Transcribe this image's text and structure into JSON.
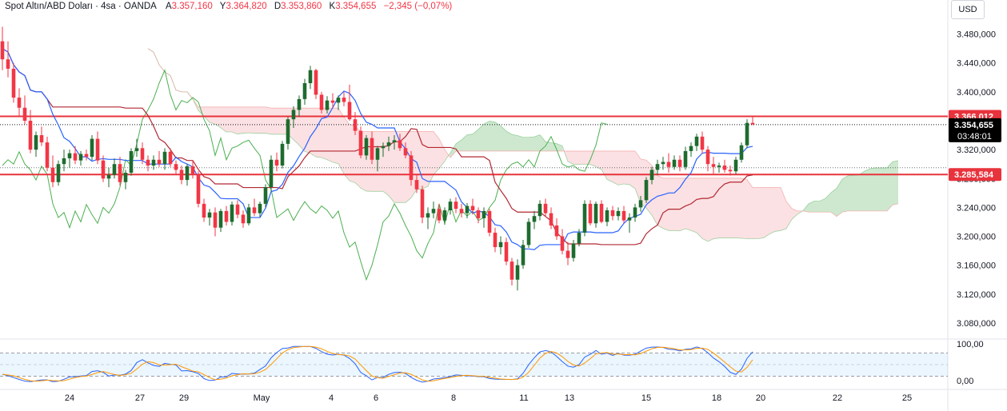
{
  "header": {
    "symbol": "Spot Altın/ABD Doları · 4sa · OANDA",
    "open_label": "A",
    "open": "3.357,160",
    "high_label": "Y",
    "high": "3.364,820",
    "low_label": "D",
    "low": "3.353,860",
    "close_label": "K",
    "close": "3.354,655",
    "change": "−2,345 (−0,07%)"
  },
  "currency": "USD",
  "colors": {
    "up": "#1e6b2e",
    "down": "#f23645",
    "level": "#e8333c",
    "kijun": "#b22833",
    "tenkan": "#2962ff",
    "lagging": "#4caf50",
    "cloud_up": "#a5d6a7",
    "cloud_down": "#f8c9cc",
    "stoch_k": "#2962ff",
    "stoch_d": "#ff9800"
  },
  "chart_data": [
    {
      "type": "candlestick",
      "y_axis_ticks": [
        3080,
        3120,
        3160,
        3200,
        3240,
        3280,
        3320,
        3360,
        3400,
        3440,
        3480
      ],
      "y_tick_labels": [
        "3.080,000",
        "3.120,000",
        "3.160,000",
        "3.200,000",
        "3.240,000",
        "3.280,000",
        "3.320,000",
        "3.360,000",
        "3.400,000",
        "3.440,000",
        "3.480,000"
      ],
      "ylim": [
        3060,
        3505
      ],
      "x_labels": [
        "24",
        "27",
        "29",
        "May",
        "4",
        "6",
        "8",
        "11",
        "13",
        "15",
        "18",
        "20",
        "22",
        "25"
      ],
      "levels": [
        {
          "label": "3.366,012",
          "value": 3366.012
        },
        {
          "label": "3.285,584",
          "value": 3285.584
        }
      ],
      "current_price": {
        "label": "3.354,655",
        "value": 3354.655,
        "countdown": "03:48:01"
      },
      "candles_ohlc": [
        [
          3470,
          3490,
          3430,
          3445
        ],
        [
          3445,
          3470,
          3420,
          3432
        ],
        [
          3432,
          3440,
          3385,
          3392
        ],
        [
          3392,
          3405,
          3365,
          3378
        ],
        [
          3378,
          3395,
          3355,
          3360
        ],
        [
          3360,
          3375,
          3315,
          3320
        ],
        [
          3320,
          3345,
          3310,
          3340
        ],
        [
          3340,
          3352,
          3325,
          3330
        ],
        [
          3330,
          3338,
          3290,
          3295
        ],
        [
          3295,
          3312,
          3268,
          3275
        ],
        [
          3275,
          3305,
          3270,
          3300
        ],
        [
          3300,
          3320,
          3290,
          3308
        ],
        [
          3308,
          3320,
          3295,
          3315
        ],
        [
          3315,
          3325,
          3300,
          3305
        ],
        [
          3305,
          3318,
          3298,
          3314
        ],
        [
          3314,
          3320,
          3305,
          3310
        ],
        [
          3310,
          3340,
          3305,
          3335
        ],
        [
          3335,
          3345,
          3300,
          3305
        ],
        [
          3305,
          3312,
          3275,
          3280
        ],
        [
          3280,
          3295,
          3268,
          3285
        ],
        [
          3285,
          3308,
          3280,
          3300
        ],
        [
          3300,
          3310,
          3270,
          3275
        ],
        [
          3275,
          3292,
          3265,
          3288
        ],
        [
          3288,
          3322,
          3284,
          3318
        ],
        [
          3318,
          3335,
          3310,
          3322
        ],
        [
          3322,
          3330,
          3300,
          3306
        ],
        [
          3306,
          3312,
          3290,
          3298
        ],
        [
          3298,
          3312,
          3292,
          3306
        ],
        [
          3306,
          3318,
          3296,
          3300
        ],
        [
          3300,
          3322,
          3292,
          3317
        ],
        [
          3317,
          3322,
          3296,
          3300
        ],
        [
          3300,
          3305,
          3285,
          3292
        ],
        [
          3292,
          3298,
          3272,
          3278
        ],
        [
          3278,
          3300,
          3270,
          3297
        ],
        [
          3297,
          3304,
          3280,
          3286
        ],
        [
          3286,
          3290,
          3240,
          3245
        ],
        [
          3245,
          3252,
          3220,
          3226
        ],
        [
          3226,
          3238,
          3215,
          3233
        ],
        [
          3233,
          3240,
          3200,
          3212
        ],
        [
          3212,
          3238,
          3206,
          3235
        ],
        [
          3235,
          3242,
          3215,
          3220
        ],
        [
          3220,
          3248,
          3215,
          3244
        ],
        [
          3244,
          3250,
          3225,
          3230
        ],
        [
          3230,
          3236,
          3212,
          3218
        ],
        [
          3218,
          3245,
          3215,
          3240
        ],
        [
          3240,
          3252,
          3228,
          3232
        ],
        [
          3232,
          3248,
          3226,
          3245
        ],
        [
          3245,
          3272,
          3240,
          3268
        ],
        [
          3268,
          3312,
          3262,
          3306
        ],
        [
          3306,
          3316,
          3290,
          3298
        ],
        [
          3298,
          3332,
          3294,
          3328
        ],
        [
          3328,
          3365,
          3320,
          3362
        ],
        [
          3362,
          3380,
          3350,
          3375
        ],
        [
          3375,
          3395,
          3366,
          3390
        ],
        [
          3390,
          3418,
          3382,
          3412
        ],
        [
          3412,
          3436,
          3404,
          3430
        ],
        [
          3430,
          3432,
          3390,
          3396
        ],
        [
          3396,
          3400,
          3370,
          3375
        ],
        [
          3375,
          3394,
          3370,
          3388
        ],
        [
          3388,
          3398,
          3378,
          3385
        ],
        [
          3385,
          3395,
          3375,
          3392
        ],
        [
          3392,
          3400,
          3380,
          3386
        ],
        [
          3386,
          3410,
          3360,
          3362
        ],
        [
          3362,
          3372,
          3340,
          3346
        ],
        [
          3346,
          3352,
          3308,
          3312
        ],
        [
          3312,
          3340,
          3306,
          3336
        ],
        [
          3336,
          3345,
          3300,
          3306
        ],
        [
          3306,
          3325,
          3290,
          3322
        ],
        [
          3322,
          3330,
          3310,
          3325
        ],
        [
          3325,
          3338,
          3318,
          3330
        ],
        [
          3330,
          3340,
          3320,
          3333
        ],
        [
          3333,
          3342,
          3318,
          3322
        ],
        [
          3322,
          3330,
          3308,
          3312
        ],
        [
          3312,
          3318,
          3270,
          3278
        ],
        [
          3278,
          3285,
          3260,
          3265
        ],
        [
          3265,
          3270,
          3218,
          3226
        ],
        [
          3226,
          3240,
          3210,
          3232
        ],
        [
          3232,
          3248,
          3225,
          3238
        ],
        [
          3238,
          3245,
          3218,
          3222
        ],
        [
          3222,
          3240,
          3216,
          3236
        ],
        [
          3236,
          3252,
          3230,
          3248
        ],
        [
          3248,
          3254,
          3232,
          3238
        ],
        [
          3238,
          3245,
          3226,
          3232
        ],
        [
          3232,
          3246,
          3225,
          3242
        ],
        [
          3242,
          3252,
          3230,
          3236
        ],
        [
          3236,
          3240,
          3218,
          3225
        ],
        [
          3225,
          3240,
          3212,
          3235
        ],
        [
          3235,
          3238,
          3200,
          3205
        ],
        [
          3205,
          3212,
          3178,
          3185
        ],
        [
          3185,
          3200,
          3175,
          3192
        ],
        [
          3192,
          3198,
          3160,
          3165
        ],
        [
          3165,
          3170,
          3132,
          3140
        ],
        [
          3140,
          3168,
          3125,
          3160
        ],
        [
          3160,
          3195,
          3155,
          3188
        ],
        [
          3188,
          3225,
          3184,
          3220
        ],
        [
          3220,
          3235,
          3210,
          3228
        ],
        [
          3228,
          3250,
          3222,
          3245
        ],
        [
          3245,
          3252,
          3228,
          3232
        ],
        [
          3232,
          3240,
          3210,
          3215
        ],
        [
          3215,
          3225,
          3195,
          3200
        ],
        [
          3200,
          3210,
          3175,
          3180
        ],
        [
          3180,
          3192,
          3160,
          3170
        ],
        [
          3170,
          3195,
          3165,
          3190
        ],
        [
          3190,
          3210,
          3186,
          3205
        ],
        [
          3205,
          3250,
          3200,
          3245
        ],
        [
          3245,
          3250,
          3215,
          3218
        ],
        [
          3218,
          3248,
          3212,
          3245
        ],
        [
          3245,
          3250,
          3218,
          3220
        ],
        [
          3220,
          3240,
          3214,
          3236
        ],
        [
          3236,
          3242,
          3222,
          3228
        ],
        [
          3228,
          3240,
          3222,
          3235
        ],
        [
          3235,
          3242,
          3218,
          3222
        ],
        [
          3222,
          3232,
          3205,
          3226
        ],
        [
          3226,
          3245,
          3220,
          3240
        ],
        [
          3240,
          3256,
          3234,
          3250
        ],
        [
          3250,
          3282,
          3246,
          3278
        ],
        [
          3278,
          3296,
          3272,
          3292
        ],
        [
          3292,
          3306,
          3285,
          3300
        ],
        [
          3300,
          3310,
          3292,
          3303
        ],
        [
          3303,
          3315,
          3288,
          3296
        ],
        [
          3296,
          3312,
          3292,
          3306
        ],
        [
          3306,
          3312,
          3290,
          3296
        ],
        [
          3296,
          3324,
          3292,
          3318
        ],
        [
          3318,
          3330,
          3310,
          3325
        ],
        [
          3325,
          3342,
          3318,
          3338
        ],
        [
          3338,
          3345,
          3315,
          3320
        ],
        [
          3320,
          3325,
          3290,
          3300
        ],
        [
          3300,
          3310,
          3285,
          3296
        ],
        [
          3296,
          3302,
          3288,
          3298
        ],
        [
          3298,
          3306,
          3288,
          3292
        ],
        [
          3292,
          3298,
          3284,
          3290
        ],
        [
          3290,
          3310,
          3286,
          3306
        ],
        [
          3306,
          3330,
          3302,
          3326
        ],
        [
          3326,
          3362,
          3322,
          3357
        ],
        [
          3357,
          3365,
          3354,
          3355
        ]
      ],
      "stochastic_ticks": [
        "100,00",
        "0,00"
      ],
      "stochastic_band": [
        20,
        80
      ]
    }
  ]
}
